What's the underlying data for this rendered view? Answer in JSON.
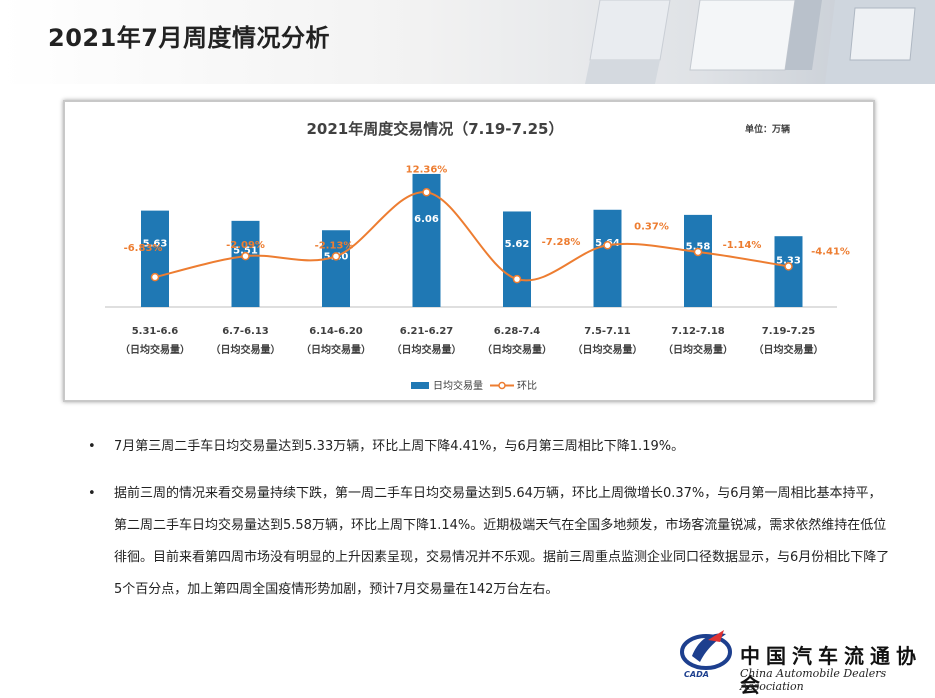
{
  "page": {
    "title": "2021年7月周度情况分析"
  },
  "chart_data": {
    "type": "bar+line",
    "title": "2021年周度交易情况（7.19-7.25）",
    "unit": "单位：万辆",
    "categories": [
      "5.31-6.6",
      "6.7-6.13",
      "6.14-6.20",
      "6.21-6.27",
      "6.28-7.4",
      "7.5-7.11",
      "7.12-7.18",
      "7.19-7.25"
    ],
    "category_sub": "（日均交易量）",
    "series": [
      {
        "name": "日均交易量",
        "kind": "bar",
        "color": "#1f78b4",
        "values": [
          5.63,
          5.51,
          5.4,
          6.06,
          5.62,
          5.64,
          5.58,
          5.33
        ],
        "labels": [
          "5.63",
          "5.51",
          "5.40",
          "6.06",
          "5.62",
          "5.64",
          "5.58",
          "5.33"
        ]
      },
      {
        "name": "环比",
        "kind": "line",
        "color": "#ed7d31",
        "values": [
          -6.83,
          -2.09,
          -2.13,
          12.36,
          -7.28,
          0.37,
          -1.14,
          -4.41
        ],
        "labels": [
          "-6.83%",
          "-2.09%",
          "-2.13%",
          "12.36%",
          "-7.28%",
          "0.37%",
          "-1.14%",
          "-4.41%"
        ]
      }
    ],
    "bar_ylim": [
      4.5,
      6.2
    ],
    "line_ylim": [
      -12,
      14
    ],
    "legend_position": "bottom"
  },
  "bullets": [
    "7月第三周二手车日均交易量达到5.33万辆，环比上周下降4.41%，与6月第三周相比下降1.19%。",
    "据前三周的情况来看交易量持续下跌，第一周二手车日均交易量达到5.64万辆，环比上周微增长0.37%，与6月第一周相比基本持平，第二周二手车日均交易量达到5.58万辆，环比上周下降1.14%。近期极端天气在全国多地频发，市场客流量锐减，需求依然维持在低位徘徊。目前来看第四周市场没有明显的上升因素呈现，交易情况并不乐观。据前三周重点监测企业同口径数据显示，与6月份相比下降了5个百分点，加上第四周全国疫情形势加剧，预计7月交易量在142万台左右。"
  ],
  "bullet_symbol": "•",
  "logo": {
    "cn": "中国汽车流通协会",
    "en": "China Automobile Dealers Association",
    "abbr": "CADA",
    "color": "#1d3f8e"
  }
}
